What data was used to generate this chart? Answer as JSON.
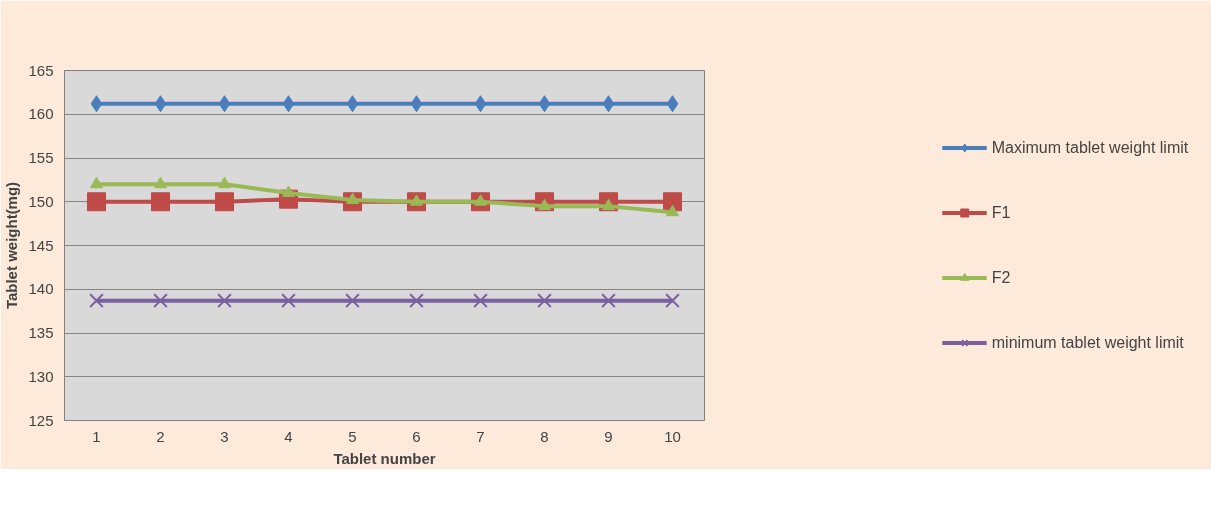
{
  "chart_data": {
    "type": "line",
    "xlabel": "Tablet number",
    "ylabel": "Tablet weight(mg)",
    "categories": [
      "1",
      "2",
      "3",
      "4",
      "5",
      "6",
      "7",
      "8",
      "9",
      "10"
    ],
    "series": [
      {
        "name": "Maximum tablet weight limit",
        "color": "#4a7ebb",
        "marker": "diamond",
        "values": [
          161.2,
          161.2,
          161.2,
          161.2,
          161.2,
          161.2,
          161.2,
          161.2,
          161.2,
          161.2
        ]
      },
      {
        "name": "F1",
        "color": "#be4b48",
        "marker": "square",
        "values": [
          150.0,
          150.0,
          150.0,
          150.3,
          150.0,
          150.0,
          150.0,
          150.0,
          150.0,
          150.0
        ]
      },
      {
        "name": "F2",
        "color": "#98b954",
        "marker": "triangle",
        "values": [
          152.0,
          152.0,
          152.0,
          151.0,
          150.2,
          150.0,
          150.0,
          149.5,
          149.5,
          148.8
        ]
      },
      {
        "name": "minimum tablet weight limit",
        "color": "#7d60a0",
        "marker": "cross",
        "values": [
          138.7,
          138.7,
          138.7,
          138.7,
          138.7,
          138.7,
          138.7,
          138.7,
          138.7,
          138.7
        ]
      }
    ],
    "ylim": [
      125,
      165
    ],
    "yticks": [
      125,
      130,
      135,
      140,
      145,
      150,
      155,
      160,
      165
    ],
    "grid": "y",
    "legend": "right"
  }
}
